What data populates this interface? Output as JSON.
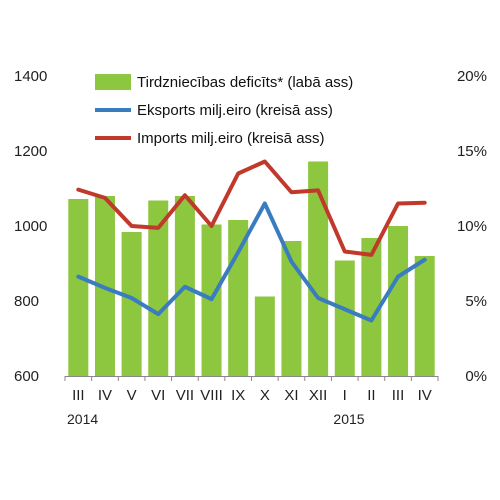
{
  "chart_data": {
    "type": "bar+line",
    "categories": [
      "III",
      "IV",
      "V",
      "VI",
      "VII",
      "VIII",
      "IX",
      "X",
      "XI",
      "XII",
      "I",
      "II",
      "III",
      "IV"
    ],
    "year_labels": [
      {
        "label": "2014",
        "category_index": 0
      },
      {
        "label": "2015",
        "category_index": 10
      }
    ],
    "left_axis": {
      "ylim": [
        600,
        1400
      ],
      "ticks": [
        "600",
        "800",
        "1000",
        "1200",
        "1400"
      ],
      "tick_values": [
        600,
        800,
        1000,
        1200,
        1400
      ]
    },
    "right_axis": {
      "ylim": [
        0,
        20
      ],
      "ticks": [
        "0%",
        "5%",
        "10%",
        "15%",
        "20%"
      ],
      "tick_values": [
        0,
        5,
        10,
        15,
        20
      ]
    },
    "series": [
      {
        "name": "Tirdzniecības deficīts* (labā ass)",
        "type": "bar",
        "axis": "right",
        "color": "#8dc63f",
        "values": [
          11.8,
          12.0,
          9.6,
          11.7,
          12.0,
          10.1,
          10.4,
          5.3,
          9.0,
          14.3,
          7.7,
          9.2,
          10.0,
          8.0
        ]
      },
      {
        "name": "Eksports milj.eiro (kreisā ass)",
        "type": "line",
        "axis": "left",
        "color": "#3a7cc0",
        "values": [
          865,
          835,
          808,
          765,
          838,
          805,
          930,
          1060,
          905,
          808,
          778,
          748,
          865,
          910
        ]
      },
      {
        "name": "Imports milj.eiro (kreisā ass)",
        "type": "line",
        "axis": "left",
        "color": "#c0392b",
        "values": [
          1097,
          1075,
          1000,
          995,
          1082,
          1000,
          1140,
          1172,
          1090,
          1095,
          932,
          923,
          1060,
          1062
        ]
      }
    ],
    "legend_position": "top-left",
    "grid": false
  }
}
